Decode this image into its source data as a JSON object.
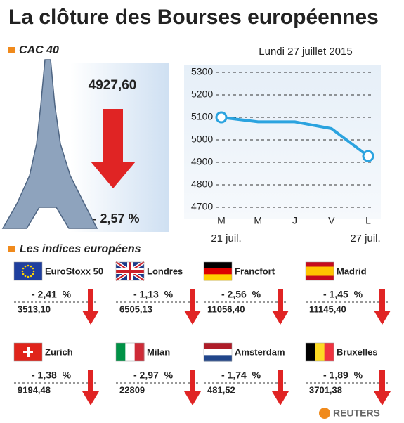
{
  "title": "La clôture des Bourses européennes",
  "cac": {
    "label": "CAC 40",
    "date": "Lundi 27 juillet 2015",
    "close": "4927,60",
    "change": "- 2,57 %"
  },
  "chart_data": {
    "type": "line",
    "categories": [
      "M",
      "M",
      "J",
      "V",
      "L"
    ],
    "date_labels": [
      "21 juil.",
      null,
      null,
      null,
      "27 juil."
    ],
    "values": [
      5100,
      5080,
      5080,
      5050,
      4927.6
    ],
    "color": "#2ba3df",
    "ylim": [
      4700,
      5300
    ],
    "yticks": [
      4700,
      4800,
      4900,
      5000,
      5100,
      5200,
      5300
    ],
    "grid": true
  },
  "indices": {
    "heading": "Les indices européens",
    "items": [
      {
        "name": "EuroStoxx 50",
        "change": "- 2,41  %",
        "close": "3513,10"
      },
      {
        "name": "Londres",
        "change": "- 1,13  %",
        "close": "6505,13"
      },
      {
        "name": "Francfort",
        "change": "- 2,56  %",
        "close": "11056,40"
      },
      {
        "name": "Madrid",
        "change": "- 1,45  %",
        "close": "11145,40"
      },
      {
        "name": "Zurich",
        "change": "- 1,38  %",
        "close": "9194,48"
      },
      {
        "name": "Milan",
        "change": "- 2,97  %",
        "close": "22809"
      },
      {
        "name": "Amsterdam",
        "change": "- 1,74  %",
        "close": "481,52"
      },
      {
        "name": "Bruxelles",
        "change": "- 1,89  %",
        "close": "3701,38"
      }
    ]
  },
  "source": "REUTERS"
}
